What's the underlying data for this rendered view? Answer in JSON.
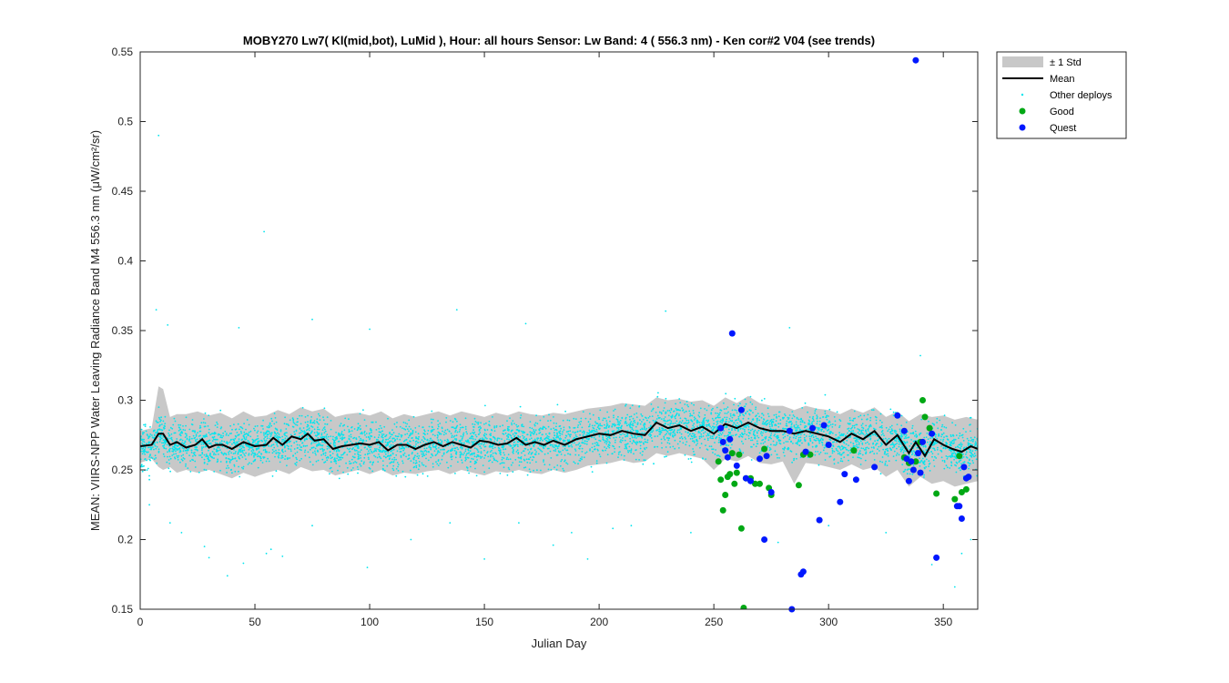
{
  "chart_data": {
    "type": "scatter",
    "title": "MOBY270   Lw7( Kl(mid,bot), LuMid ),   Hour: all hours  Sensor: Lw Band: 4 ( 556.3 nm)  - Ken cor#2 V04 (see trends)",
    "xlabel": "Julian Day",
    "ylabel": "MEAN: VIIRS-NPP Water Leaving Radiance Band M4 556.3 nm (μW/cm²/sr)",
    "xlim": [
      0,
      365
    ],
    "ylim": [
      0.15,
      0.55
    ],
    "xticks": [
      0,
      50,
      100,
      150,
      200,
      250,
      300,
      350
    ],
    "yticks": [
      0.15,
      0.2,
      0.25,
      0.3,
      0.35,
      0.4,
      0.45,
      0.5,
      0.55
    ],
    "legend_position": "outside-top-right",
    "grid": false,
    "legend": [
      {
        "label": "± 1 Std",
        "type": "band",
        "color": "#c8c8c8"
      },
      {
        "label": "Mean",
        "type": "line",
        "color": "#000000"
      },
      {
        "label": "Other deploys",
        "type": "dot",
        "color": "#00e5ee"
      },
      {
        "label": "Good",
        "type": "dot",
        "color": "#00a814"
      },
      {
        "label": "Quest",
        "type": "dot",
        "color": "#0018ff"
      }
    ],
    "mean_line": {
      "x": [
        0,
        5,
        8,
        10,
        13,
        16,
        20,
        24,
        27,
        30,
        33,
        36,
        40,
        45,
        50,
        55,
        58,
        62,
        66,
        70,
        73,
        76,
        80,
        84,
        88,
        92,
        96,
        100,
        104,
        108,
        112,
        116,
        120,
        124,
        128,
        132,
        136,
        140,
        144,
        148,
        152,
        156,
        160,
        164,
        168,
        172,
        176,
        180,
        185,
        190,
        195,
        200,
        205,
        210,
        215,
        220,
        225,
        230,
        235,
        240,
        245,
        250,
        255,
        260,
        265,
        270,
        275,
        280,
        285,
        290,
        295,
        300,
        305,
        310,
        315,
        320,
        325,
        330,
        335,
        338,
        342,
        346,
        350,
        354,
        358,
        362,
        365
      ],
      "y": [
        0.267,
        0.268,
        0.276,
        0.276,
        0.268,
        0.27,
        0.266,
        0.268,
        0.272,
        0.266,
        0.268,
        0.268,
        0.265,
        0.27,
        0.267,
        0.268,
        0.273,
        0.268,
        0.274,
        0.272,
        0.276,
        0.271,
        0.272,
        0.265,
        0.267,
        0.268,
        0.269,
        0.268,
        0.27,
        0.264,
        0.268,
        0.268,
        0.265,
        0.268,
        0.27,
        0.267,
        0.27,
        0.268,
        0.266,
        0.271,
        0.27,
        0.268,
        0.269,
        0.273,
        0.268,
        0.27,
        0.268,
        0.271,
        0.268,
        0.272,
        0.274,
        0.276,
        0.275,
        0.278,
        0.276,
        0.275,
        0.284,
        0.28,
        0.282,
        0.278,
        0.281,
        0.276,
        0.283,
        0.28,
        0.284,
        0.28,
        0.278,
        0.278,
        0.276,
        0.278,
        0.276,
        0.274,
        0.27,
        0.276,
        0.272,
        0.278,
        0.268,
        0.275,
        0.262,
        0.27,
        0.26,
        0.272,
        0.268,
        0.265,
        0.263,
        0.267,
        0.265
      ]
    },
    "std_band": {
      "x": [
        0,
        5,
        8,
        10,
        13,
        16,
        20,
        25,
        30,
        35,
        40,
        45,
        50,
        55,
        60,
        65,
        70,
        75,
        80,
        85,
        90,
        95,
        100,
        105,
        110,
        115,
        120,
        125,
        130,
        135,
        140,
        145,
        150,
        155,
        160,
        165,
        170,
        175,
        180,
        185,
        190,
        195,
        200,
        205,
        210,
        215,
        220,
        225,
        230,
        235,
        240,
        245,
        250,
        255,
        260,
        265,
        270,
        275,
        280,
        285,
        290,
        295,
        300,
        305,
        310,
        315,
        320,
        325,
        330,
        335,
        340,
        345,
        350,
        355,
        360,
        365
      ],
      "upper": [
        0.278,
        0.28,
        0.31,
        0.308,
        0.288,
        0.29,
        0.29,
        0.292,
        0.289,
        0.291,
        0.287,
        0.292,
        0.288,
        0.289,
        0.293,
        0.29,
        0.295,
        0.292,
        0.294,
        0.288,
        0.29,
        0.291,
        0.289,
        0.292,
        0.287,
        0.29,
        0.288,
        0.29,
        0.292,
        0.289,
        0.292,
        0.29,
        0.288,
        0.291,
        0.289,
        0.292,
        0.29,
        0.289,
        0.291,
        0.29,
        0.292,
        0.294,
        0.295,
        0.296,
        0.298,
        0.297,
        0.296,
        0.302,
        0.3,
        0.301,
        0.299,
        0.3,
        0.296,
        0.302,
        0.298,
        0.303,
        0.298,
        0.296,
        0.296,
        0.293,
        0.296,
        0.294,
        0.293,
        0.29,
        0.294,
        0.291,
        0.295,
        0.288,
        0.292,
        0.285,
        0.29,
        0.288,
        0.289,
        0.286,
        0.288,
        0.286
      ],
      "lower": [
        0.255,
        0.258,
        0.252,
        0.25,
        0.252,
        0.248,
        0.25,
        0.248,
        0.25,
        0.247,
        0.244,
        0.248,
        0.245,
        0.248,
        0.25,
        0.247,
        0.252,
        0.249,
        0.25,
        0.246,
        0.248,
        0.25,
        0.247,
        0.25,
        0.246,
        0.248,
        0.247,
        0.249,
        0.25,
        0.247,
        0.25,
        0.248,
        0.246,
        0.249,
        0.248,
        0.25,
        0.248,
        0.247,
        0.25,
        0.248,
        0.25,
        0.253,
        0.254,
        0.255,
        0.257,
        0.255,
        0.256,
        0.262,
        0.26,
        0.262,
        0.26,
        0.258,
        0.25,
        0.258,
        0.256,
        0.26,
        0.255,
        0.254,
        0.256,
        0.24,
        0.255,
        0.254,
        0.252,
        0.25,
        0.254,
        0.25,
        0.252,
        0.245,
        0.25,
        0.238,
        0.245,
        0.24,
        0.242,
        0.238,
        0.24,
        0.242
      ]
    },
    "other_deploys": {
      "note_x_range": [
        0,
        365
      ],
      "outliers": [
        [
          8,
          0.49
        ],
        [
          54,
          0.421
        ],
        [
          7,
          0.365
        ],
        [
          12,
          0.354
        ],
        [
          43,
          0.352
        ],
        [
          75,
          0.358
        ],
        [
          100,
          0.351
        ],
        [
          138,
          0.365
        ],
        [
          168,
          0.355
        ],
        [
          229,
          0.364
        ],
        [
          283,
          0.352
        ],
        [
          340,
          0.332
        ],
        [
          4,
          0.225
        ],
        [
          13,
          0.212
        ],
        [
          18,
          0.205
        ],
        [
          28,
          0.195
        ],
        [
          30,
          0.187
        ],
        [
          38,
          0.174
        ],
        [
          45,
          0.183
        ],
        [
          55,
          0.19
        ],
        [
          57,
          0.193
        ],
        [
          62,
          0.188
        ],
        [
          75,
          0.21
        ],
        [
          99,
          0.18
        ],
        [
          118,
          0.2
        ],
        [
          135,
          0.212
        ],
        [
          150,
          0.186
        ],
        [
          165,
          0.212
        ],
        [
          180,
          0.196
        ],
        [
          188,
          0.205
        ],
        [
          195,
          0.186
        ],
        [
          206,
          0.208
        ],
        [
          214,
          0.21
        ],
        [
          240,
          0.205
        ],
        [
          278,
          0.198
        ],
        [
          300,
          0.21
        ],
        [
          325,
          0.205
        ],
        [
          345,
          0.182
        ],
        [
          355,
          0.166
        ],
        [
          358,
          0.19
        ],
        [
          362,
          0.2
        ]
      ]
    },
    "good": {
      "x": [
        252,
        253,
        254,
        255,
        256,
        257,
        258,
        259,
        260,
        261,
        262,
        263,
        264,
        266,
        268,
        270,
        272,
        274,
        275,
        287,
        289,
        292,
        311,
        333,
        335,
        338,
        340,
        341,
        342,
        344,
        347,
        355,
        357,
        358,
        360
      ],
      "y": [
        0.256,
        0.243,
        0.221,
        0.232,
        0.245,
        0.247,
        0.262,
        0.24,
        0.248,
        0.261,
        0.208,
        0.151,
        0.244,
        0.244,
        0.24,
        0.24,
        0.265,
        0.237,
        0.232,
        0.239,
        0.261,
        0.261,
        0.264,
        0.259,
        0.255,
        0.256,
        0.27,
        0.3,
        0.288,
        0.28,
        0.233,
        0.229,
        0.26,
        0.234,
        0.236
      ]
    },
    "quest": {
      "x": [
        253,
        254,
        255,
        256,
        257,
        258,
        260,
        262,
        264,
        266,
        270,
        272,
        273,
        275,
        283,
        284,
        288,
        289,
        290,
        293,
        296,
        298,
        300,
        305,
        307,
        312,
        320,
        330,
        333,
        334,
        335,
        336,
        337,
        338,
        339,
        340,
        341,
        345,
        347,
        356,
        357,
        358,
        359,
        360,
        361
      ],
      "y": [
        0.28,
        0.27,
        0.264,
        0.259,
        0.272,
        0.348,
        0.253,
        0.293,
        0.244,
        0.242,
        0.258,
        0.2,
        0.26,
        0.234,
        0.278,
        0.15,
        0.175,
        0.177,
        0.263,
        0.28,
        0.214,
        0.282,
        0.268,
        0.227,
        0.247,
        0.243,
        0.252,
        0.289,
        0.278,
        0.258,
        0.242,
        0.256,
        0.25,
        0.544,
        0.262,
        0.248,
        0.27,
        0.276,
        0.187,
        0.224,
        0.224,
        0.215,
        0.252,
        0.244,
        0.245
      ]
    }
  }
}
